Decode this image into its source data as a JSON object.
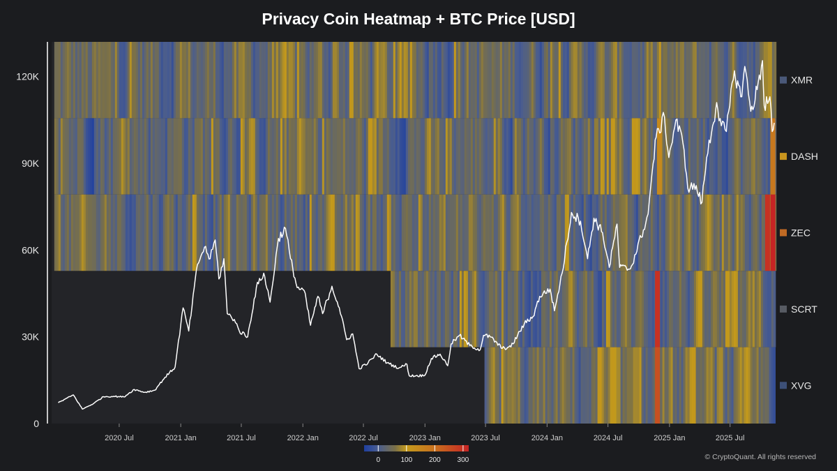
{
  "page": {
    "footer": "© CryptoQuant. All rights reserved"
  },
  "chart_data": {
    "type": "heatmap",
    "title": "Privacy Coin Heatmap + BTC Price [USD]",
    "xlabel": "",
    "ylabel": "",
    "x_range": [
      "2019-12-12",
      "2025-11-10"
    ],
    "x_ticks": [
      {
        "date": "2020-07-01",
        "label": "2020 Jul"
      },
      {
        "date": "2021-01-01",
        "label": "2021 Jan"
      },
      {
        "date": "2021-07-01",
        "label": "2021 Jul"
      },
      {
        "date": "2022-01-01",
        "label": "2022 Jan"
      },
      {
        "date": "2022-07-01",
        "label": "2022 Jul"
      },
      {
        "date": "2023-01-01",
        "label": "2023 Jan"
      },
      {
        "date": "2023-07-01",
        "label": "2023 Jul"
      },
      {
        "date": "2024-01-01",
        "label": "2024 Jan"
      },
      {
        "date": "2024-07-01",
        "label": "2024 Jul"
      },
      {
        "date": "2025-01-01",
        "label": "2025 Jan"
      },
      {
        "date": "2025-07-01",
        "label": "2025 Jul"
      }
    ],
    "ylim": [
      0,
      132000
    ],
    "y_ticks": [
      {
        "value": 0,
        "label": "0"
      },
      {
        "value": 30000,
        "label": "30K"
      },
      {
        "value": 60000,
        "label": "60K"
      },
      {
        "value": 90000,
        "label": "90K"
      },
      {
        "value": 120000,
        "label": "120K"
      }
    ],
    "heatmap_rows": [
      {
        "name": "XMR",
        "start": "2019-12-20",
        "legend_color": "#4a5878"
      },
      {
        "name": "DASH",
        "start": "2019-12-20",
        "legend_color": "#c8941e"
      },
      {
        "name": "ZEC",
        "start": "2019-12-20",
        "legend_color": "#c06a24"
      },
      {
        "name": "SCRT",
        "start": "2022-09-20",
        "legend_color": "#575b63"
      },
      {
        "name": "XVG",
        "start": "2023-06-28",
        "legend_color": "#3d5078"
      }
    ],
    "colorbar": {
      "min": -50,
      "max": 320,
      "tick_values": [
        0,
        100,
        200,
        300
      ],
      "tick_labels": [
        "0",
        "100",
        "200",
        "300"
      ],
      "stops": [
        {
          "value": -50,
          "color": "#1e3fa0"
        },
        {
          "value": 0,
          "color": "#4a5d8f"
        },
        {
          "value": 60,
          "color": "#7a7048"
        },
        {
          "value": 100,
          "color": "#c39a1c"
        },
        {
          "value": 200,
          "color": "#c8701e"
        },
        {
          "value": 320,
          "color": "#c62424"
        }
      ]
    },
    "heatmap_highlights": [
      {
        "row": "DASH",
        "date": "2024-12-01",
        "value": 140
      },
      {
        "row": "DASH",
        "date": "2025-11-05",
        "value": 180
      },
      {
        "row": "ZEC",
        "date": "2025-10-20",
        "value": 300
      },
      {
        "row": "ZEC",
        "date": "2025-11-05",
        "value": 320
      },
      {
        "row": "SCRT",
        "date": "2024-11-25",
        "value": 300
      },
      {
        "row": "XVG",
        "date": "2024-11-25",
        "value": 250
      }
    ],
    "series": [
      {
        "type": "line",
        "color": "#ffffff",
        "points": [
          [
            "2020-01-01",
            7200
          ],
          [
            "2020-02-15",
            9900
          ],
          [
            "2020-03-13",
            5000
          ],
          [
            "2020-04-15",
            6900
          ],
          [
            "2020-05-15",
            9300
          ],
          [
            "2020-06-15",
            9400
          ],
          [
            "2020-07-15",
            9200
          ],
          [
            "2020-08-15",
            11800
          ],
          [
            "2020-09-15",
            10800
          ],
          [
            "2020-10-15",
            11500
          ],
          [
            "2020-11-15",
            16000
          ],
          [
            "2020-12-15",
            19500
          ],
          [
            "2021-01-08",
            40000
          ],
          [
            "2021-01-25",
            32000
          ],
          [
            "2021-02-20",
            55000
          ],
          [
            "2021-03-13",
            61000
          ],
          [
            "2021-03-30",
            57000
          ],
          [
            "2021-04-14",
            63500
          ],
          [
            "2021-04-25",
            50000
          ],
          [
            "2021-05-10",
            57000
          ],
          [
            "2021-05-20",
            38000
          ],
          [
            "2021-06-10",
            36000
          ],
          [
            "2021-06-25",
            32000
          ],
          [
            "2021-07-20",
            30000
          ],
          [
            "2021-08-15",
            47000
          ],
          [
            "2021-09-06",
            52000
          ],
          [
            "2021-09-25",
            42000
          ],
          [
            "2021-10-20",
            64000
          ],
          [
            "2021-11-10",
            67500
          ],
          [
            "2021-11-25",
            57000
          ],
          [
            "2021-12-15",
            47000
          ],
          [
            "2022-01-05",
            46000
          ],
          [
            "2022-01-24",
            34000
          ],
          [
            "2022-02-15",
            44000
          ],
          [
            "2022-03-01",
            38000
          ],
          [
            "2022-03-29",
            47500
          ],
          [
            "2022-04-20",
            40000
          ],
          [
            "2022-05-12",
            29000
          ],
          [
            "2022-05-30",
            31000
          ],
          [
            "2022-06-18",
            19000
          ],
          [
            "2022-07-15",
            21000
          ],
          [
            "2022-08-10",
            24000
          ],
          [
            "2022-09-10",
            21000
          ],
          [
            "2022-10-15",
            19200
          ],
          [
            "2022-11-08",
            20500
          ],
          [
            "2022-11-15",
            16500
          ],
          [
            "2022-12-31",
            16600
          ],
          [
            "2023-01-20",
            22500
          ],
          [
            "2023-02-15",
            24000
          ],
          [
            "2023-03-10",
            20000
          ],
          [
            "2023-03-20",
            27500
          ],
          [
            "2023-04-14",
            30500
          ],
          [
            "2023-05-15",
            27000
          ],
          [
            "2023-06-15",
            25500
          ],
          [
            "2023-06-25",
            30500
          ],
          [
            "2023-07-15",
            30000
          ],
          [
            "2023-08-20",
            26000
          ],
          [
            "2023-09-15",
            26500
          ],
          [
            "2023-10-25",
            34500
          ],
          [
            "2023-11-20",
            37000
          ],
          [
            "2023-12-10",
            44000
          ],
          [
            "2024-01-10",
            46500
          ],
          [
            "2024-01-23",
            39000
          ],
          [
            "2024-02-15",
            52000
          ],
          [
            "2024-03-14",
            73000
          ],
          [
            "2024-04-10",
            70000
          ],
          [
            "2024-05-01",
            57000
          ],
          [
            "2024-05-20",
            71000
          ],
          [
            "2024-06-15",
            66000
          ],
          [
            "2024-07-05",
            54000
          ],
          [
            "2024-07-28",
            69000
          ],
          [
            "2024-08-05",
            54000
          ],
          [
            "2024-09-06",
            53500
          ],
          [
            "2024-10-15",
            67000
          ],
          [
            "2024-10-29",
            72500
          ],
          [
            "2024-11-13",
            90000
          ],
          [
            "2024-11-22",
            99000
          ],
          [
            "2024-12-17",
            106000
          ],
          [
            "2024-12-30",
            92000
          ],
          [
            "2025-01-20",
            105000
          ],
          [
            "2025-02-10",
            97000
          ],
          [
            "2025-02-28",
            80000
          ],
          [
            "2025-03-15",
            83000
          ],
          [
            "2025-04-08",
            76500
          ],
          [
            "2025-04-22",
            92000
          ],
          [
            "2025-05-10",
            103000
          ],
          [
            "2025-05-22",
            111000
          ],
          [
            "2025-06-05",
            103000
          ],
          [
            "2025-06-20",
            101000
          ],
          [
            "2025-07-14",
            122000
          ],
          [
            "2025-08-02",
            113000
          ],
          [
            "2025-08-14",
            123500
          ],
          [
            "2025-09-01",
            108000
          ],
          [
            "2025-09-20",
            115500
          ],
          [
            "2025-10-06",
            125500
          ],
          [
            "2025-10-11",
            110000
          ],
          [
            "2025-10-28",
            113000
          ],
          [
            "2025-11-04",
            101000
          ],
          [
            "2025-11-10",
            104000
          ]
        ]
      }
    ]
  }
}
